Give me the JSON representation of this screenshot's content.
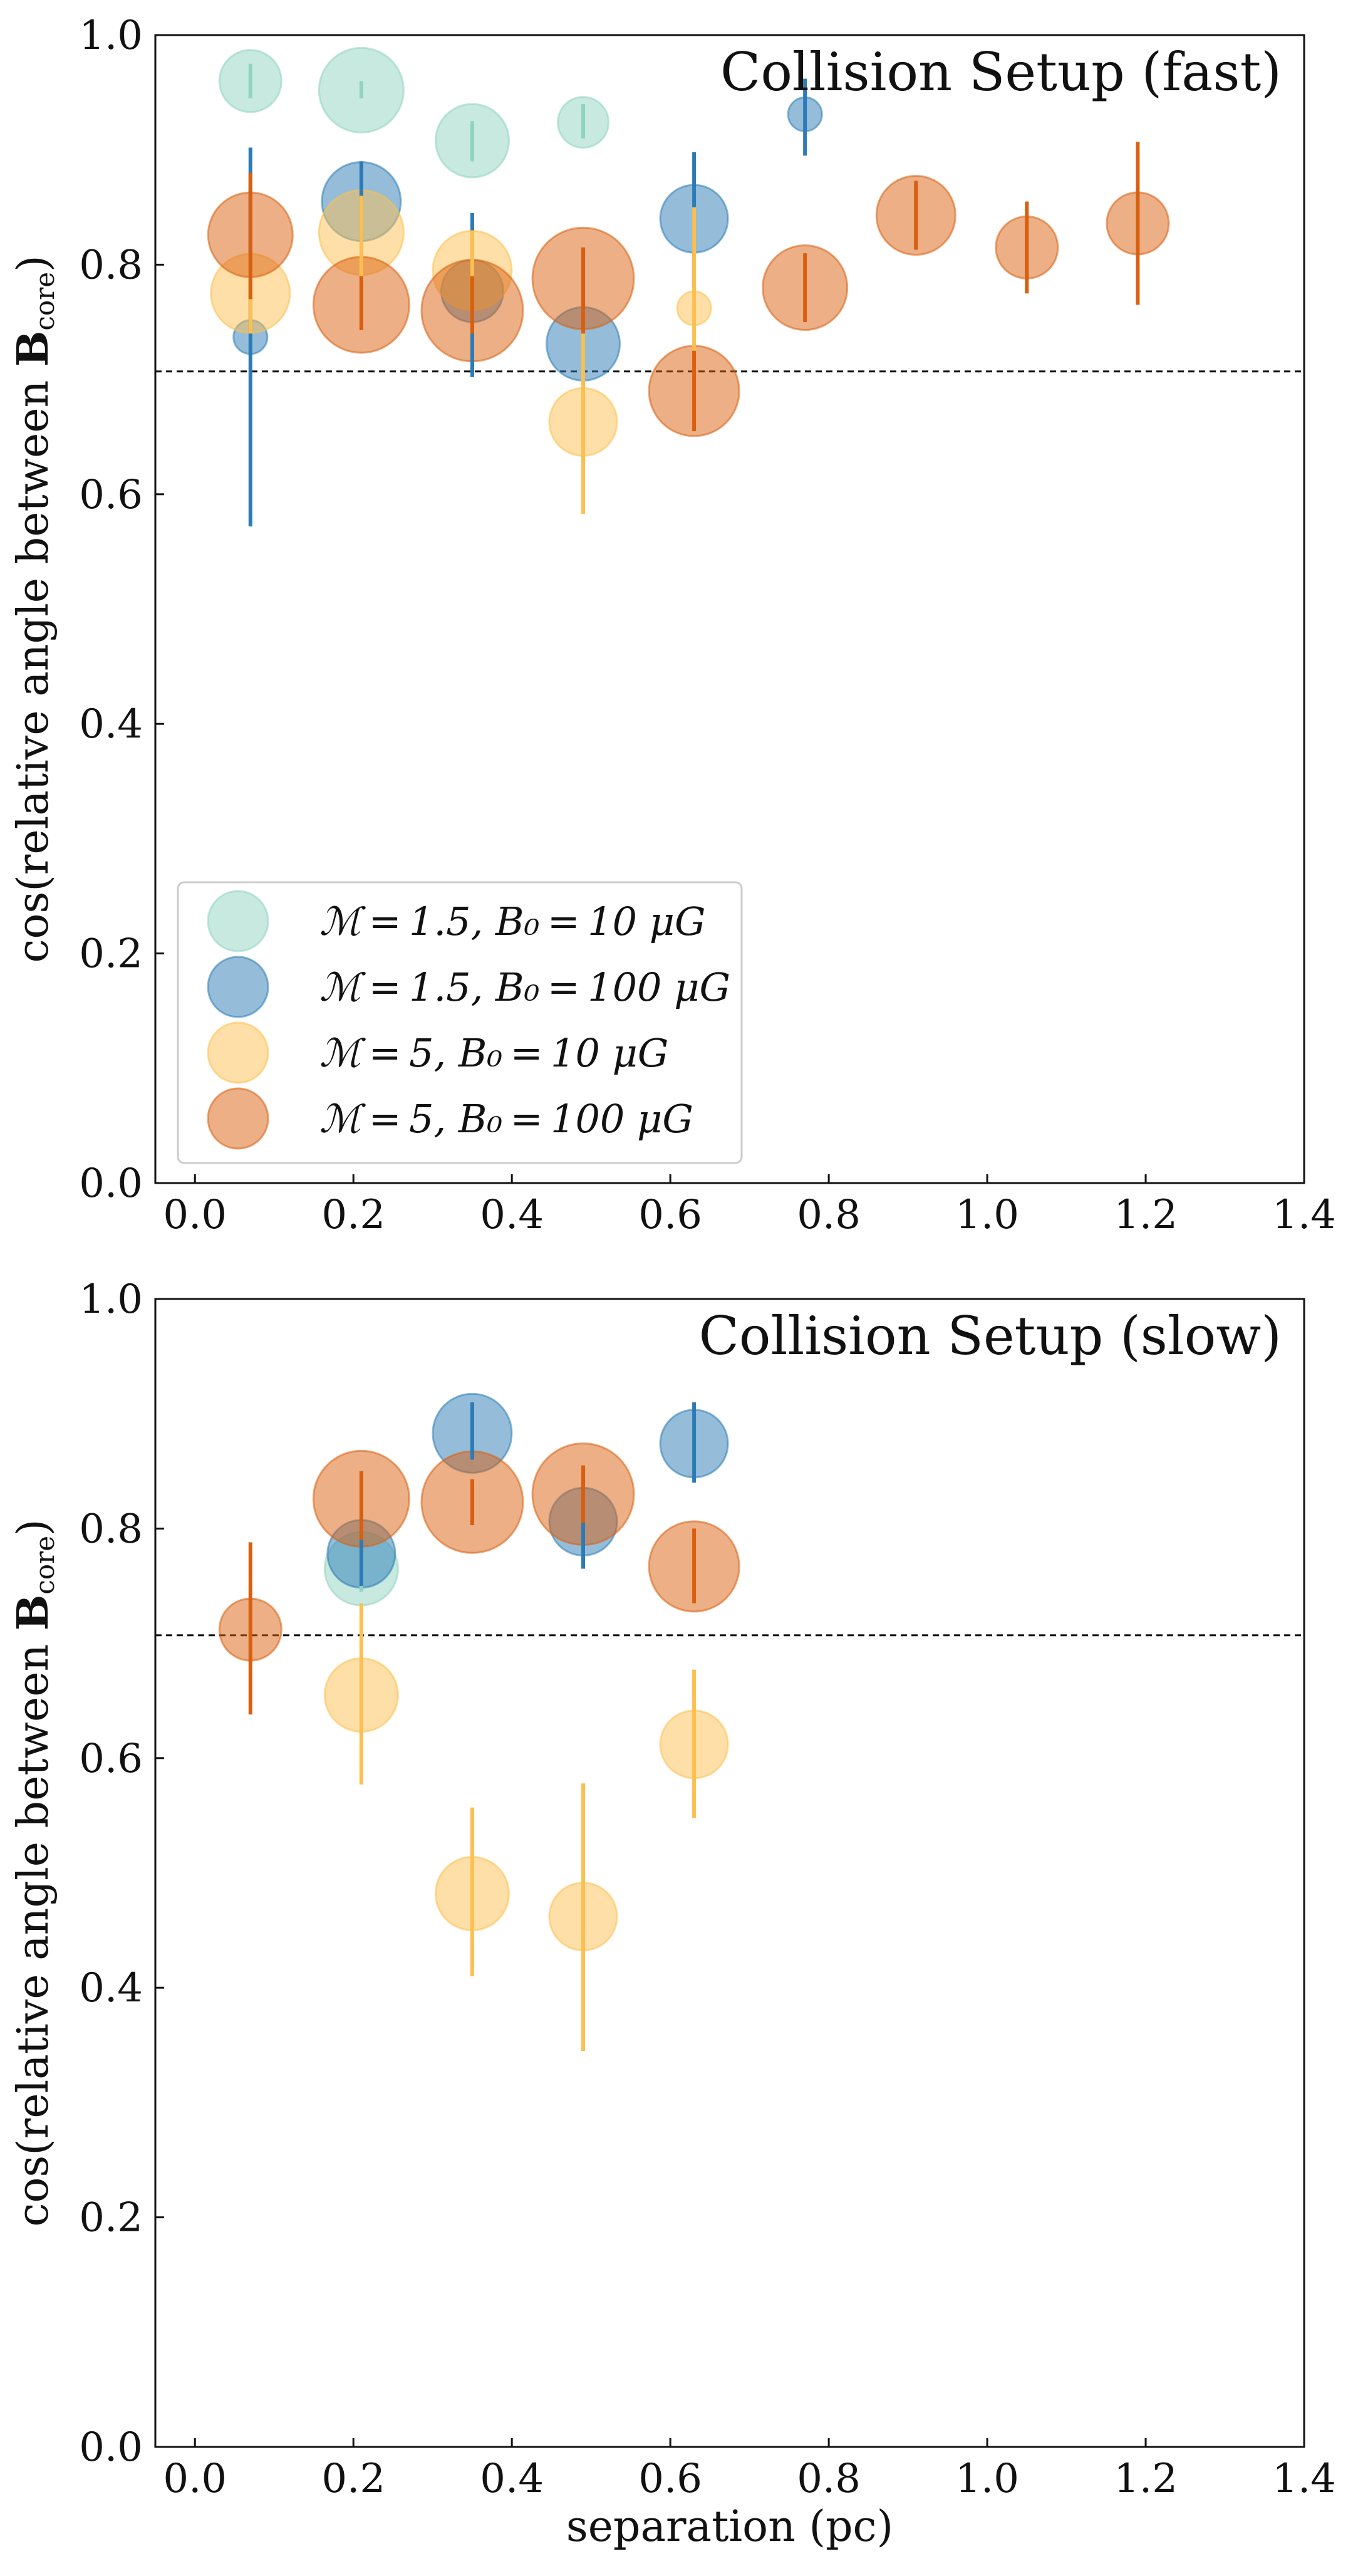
{
  "figure": {
    "legend_entries": [
      {
        "label": "ℳ = 1.5, B₀ = 10 μG",
        "color": "#8fd3c1"
      },
      {
        "label": "ℳ = 1.5, B₀ = 100 μG",
        "color": "#2c7bb6"
      },
      {
        "label": "ℳ = 5, B₀ = 10 μG",
        "color": "#fdbf4f"
      },
      {
        "label": "ℳ = 5, B₀ = 100 μG",
        "color": "#d95f0e"
      }
    ],
    "reference_line": 0.707
  },
  "chart_data": [
    {
      "type": "scatter",
      "title": "Collision Setup (fast)",
      "ylabel": "cos(relative angle between B_core)",
      "ylabel_display": {
        "prefix": "cos(relative angle between ",
        "bold": "B",
        "sub": "core",
        "suffix": ")"
      },
      "xlabel": "",
      "xlim": [
        -0.05,
        1.4
      ],
      "ylim": [
        0.0,
        1.0
      ],
      "xticks": [
        "0.0",
        "0.2",
        "0.4",
        "0.6",
        "0.8",
        "1.0",
        "1.2",
        "1.4"
      ],
      "yticks": [
        "0.0",
        "0.2",
        "0.4",
        "0.6",
        "0.8",
        "1.0"
      ],
      "reference_line": 0.707,
      "legend": "lower-left",
      "series": [
        {
          "name": "M=1.5, B0=10 uG",
          "color": "#8fd3c1",
          "points": [
            {
              "x": 0.07,
              "y": 0.96,
              "yerr": [
                0.945,
                0.975
              ],
              "size": 0.55
            },
            {
              "x": 0.21,
              "y": 0.952,
              "yerr": [
                0.945,
                0.96
              ],
              "size": 0.75
            },
            {
              "x": 0.35,
              "y": 0.908,
              "yerr": [
                0.89,
                0.925
              ],
              "size": 0.65
            },
            {
              "x": 0.49,
              "y": 0.924,
              "yerr": [
                0.91,
                0.94
              ],
              "size": 0.45
            }
          ]
        },
        {
          "name": "M=1.5, B0=100 uG",
          "color": "#2c7bb6",
          "points": [
            {
              "x": 0.07,
              "y": 0.737,
              "yerr": [
                0.572,
                0.902
              ],
              "size": 0.3
            },
            {
              "x": 0.21,
              "y": 0.855,
              "yerr": [
                0.82,
                0.89
              ],
              "size": 0.7
            },
            {
              "x": 0.35,
              "y": 0.777,
              "yerr": [
                0.702,
                0.845
              ],
              "size": 0.55
            },
            {
              "x": 0.49,
              "y": 0.731,
              "yerr": [
                0.7,
                0.81
              ],
              "size": 0.65
            },
            {
              "x": 0.63,
              "y": 0.84,
              "yerr": [
                0.78,
                0.898
              ],
              "size": 0.6
            },
            {
              "x": 0.77,
              "y": 0.931,
              "yerr": [
                0.895,
                0.962
              ],
              "size": 0.3
            }
          ]
        },
        {
          "name": "M=5, B0=10 uG",
          "color": "#fdbf4f",
          "points": [
            {
              "x": 0.07,
              "y": 0.775,
              "yerr": [
                0.74,
                0.81
              ],
              "size": 0.7
            },
            {
              "x": 0.21,
              "y": 0.828,
              "yerr": [
                0.79,
                0.86
              ],
              "size": 0.75
            },
            {
              "x": 0.35,
              "y": 0.795,
              "yerr": [
                0.76,
                0.83
              ],
              "size": 0.7
            },
            {
              "x": 0.49,
              "y": 0.663,
              "yerr": [
                0.583,
                0.743
              ],
              "size": 0.6
            },
            {
              "x": 0.63,
              "y": 0.762,
              "yerr": [
                0.68,
                0.85
              ],
              "size": 0.3
            }
          ]
        },
        {
          "name": "M=5, B0=100 uG",
          "color": "#d95f0e",
          "points": [
            {
              "x": 0.07,
              "y": 0.826,
              "yerr": [
                0.77,
                0.88
              ],
              "size": 0.75
            },
            {
              "x": 0.21,
              "y": 0.765,
              "yerr": [
                0.743,
                0.79
              ],
              "size": 0.85
            },
            {
              "x": 0.35,
              "y": 0.76,
              "yerr": [
                0.74,
                0.79
              ],
              "size": 0.9
            },
            {
              "x": 0.49,
              "y": 0.788,
              "yerr": [
                0.74,
                0.815
              ],
              "size": 0.9
            },
            {
              "x": 0.63,
              "y": 0.69,
              "yerr": [
                0.655,
                0.725
              ],
              "size": 0.8
            },
            {
              "x": 0.77,
              "y": 0.78,
              "yerr": [
                0.75,
                0.81
              ],
              "size": 0.75
            },
            {
              "x": 0.91,
              "y": 0.843,
              "yerr": [
                0.813,
                0.873
              ],
              "size": 0.7
            },
            {
              "x": 1.05,
              "y": 0.815,
              "yerr": [
                0.775,
                0.855
              ],
              "size": 0.55
            },
            {
              "x": 1.19,
              "y": 0.836,
              "yerr": [
                0.765,
                0.907
              ],
              "size": 0.55
            }
          ]
        }
      ]
    },
    {
      "type": "scatter",
      "title": "Collision Setup (slow)",
      "ylabel": "cos(relative angle between B_core)",
      "ylabel_display": {
        "prefix": "cos(relative angle between ",
        "bold": "B",
        "sub": "core",
        "suffix": ")"
      },
      "xlabel": "separation (pc)",
      "xlim": [
        -0.05,
        1.4
      ],
      "ylim": [
        0.0,
        1.0
      ],
      "xticks": [
        "0.0",
        "0.2",
        "0.4",
        "0.6",
        "0.8",
        "1.0",
        "1.2",
        "1.4"
      ],
      "yticks": [
        "0.0",
        "0.2",
        "0.4",
        "0.6",
        "0.8",
        "1.0"
      ],
      "reference_line": 0.707,
      "legend": "none",
      "series": [
        {
          "name": "M=1.5, B0=10 uG",
          "color": "#8fd3c1",
          "points": [
            {
              "x": 0.21,
              "y": 0.765,
              "yerr": [
                0.745,
                0.785
              ],
              "size": 0.65
            }
          ]
        },
        {
          "name": "M=1.5, B0=100 uG",
          "color": "#2c7bb6",
          "points": [
            {
              "x": 0.21,
              "y": 0.778,
              "yerr": [
                0.75,
                0.8
              ],
              "size": 0.6
            },
            {
              "x": 0.35,
              "y": 0.883,
              "yerr": [
                0.86,
                0.91
              ],
              "size": 0.7
            },
            {
              "x": 0.49,
              "y": 0.806,
              "yerr": [
                0.765,
                0.835
              ],
              "size": 0.6
            },
            {
              "x": 0.63,
              "y": 0.874,
              "yerr": [
                0.84,
                0.91
              ],
              "size": 0.6
            }
          ]
        },
        {
          "name": "M=5, B0=10 uG",
          "color": "#fdbf4f",
          "points": [
            {
              "x": 0.21,
              "y": 0.655,
              "yerr": [
                0.577,
                0.735
              ],
              "size": 0.65
            },
            {
              "x": 0.35,
              "y": 0.482,
              "yerr": [
                0.41,
                0.557
              ],
              "size": 0.65
            },
            {
              "x": 0.49,
              "y": 0.462,
              "yerr": [
                0.345,
                0.578
              ],
              "size": 0.6
            },
            {
              "x": 0.63,
              "y": 0.612,
              "yerr": [
                0.548,
                0.677
              ],
              "size": 0.6
            }
          ]
        },
        {
          "name": "M=5, B0=100 uG",
          "color": "#d95f0e",
          "points": [
            {
              "x": 0.07,
              "y": 0.712,
              "yerr": [
                0.638,
                0.788
              ],
              "size": 0.55
            },
            {
              "x": 0.21,
              "y": 0.826,
              "yerr": [
                0.79,
                0.85
              ],
              "size": 0.85
            },
            {
              "x": 0.35,
              "y": 0.823,
              "yerr": [
                0.803,
                0.843
              ],
              "size": 0.9
            },
            {
              "x": 0.49,
              "y": 0.83,
              "yerr": [
                0.805,
                0.855
              ],
              "size": 0.9
            },
            {
              "x": 0.63,
              "y": 0.767,
              "yerr": [
                0.735,
                0.8
              ],
              "size": 0.8
            }
          ]
        }
      ]
    }
  ]
}
